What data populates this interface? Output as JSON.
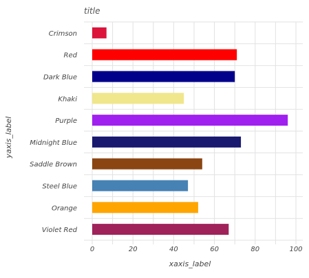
{
  "chart_data": {
    "type": "bar",
    "orientation": "horizontal",
    "title": "title",
    "xlabel": "xaxis_label",
    "ylabel": "yaxis_label",
    "xlim": [
      0,
      100
    ],
    "xticks": [
      0,
      20,
      40,
      60,
      80,
      100
    ],
    "xtick_labels": [
      "0",
      "20",
      "40",
      "60",
      "80",
      "100"
    ],
    "grid": true,
    "categories": [
      "Violet Red",
      "Orange",
      "Steel Blue",
      "Saddle Brown",
      "Midnight Blue",
      "Purple",
      "Khaki",
      "Dark Blue",
      "Red",
      "Crimson"
    ],
    "values": [
      67,
      52,
      47,
      54,
      73,
      96,
      45,
      70,
      71,
      7
    ],
    "colors": [
      "#a0225a",
      "#ffa500",
      "#4682b4",
      "#8b4513",
      "#191970",
      "#a020f0",
      "#f0e68c",
      "#00008b",
      "#ff0000",
      "#dc143c"
    ]
  }
}
